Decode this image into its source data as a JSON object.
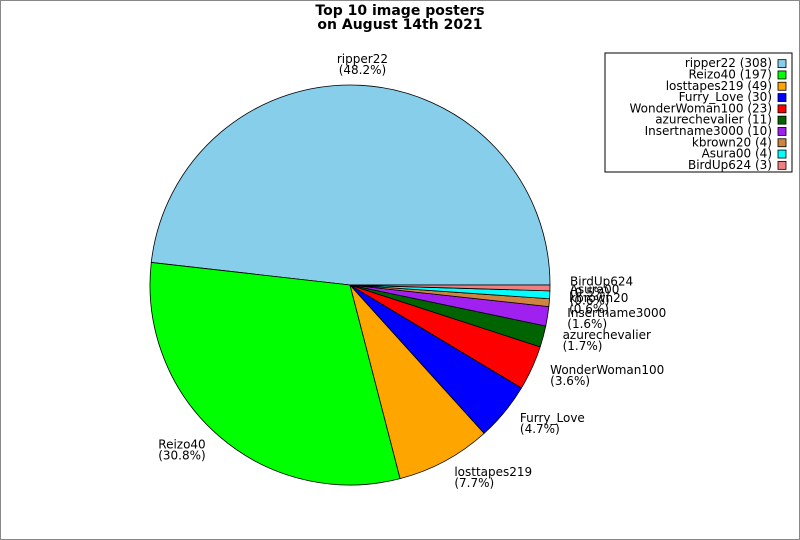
{
  "chart_data": {
    "type": "pie",
    "title": [
      "Top 10 image posters",
      "on August 14th 2021"
    ],
    "categories": [
      "ripper22",
      "Reizo40",
      "losttapes219",
      "Furry_Love",
      "WonderWoman100",
      "azurechevalier",
      "Insertname3000",
      "kbrown20",
      "Asura00",
      "BirdUp624"
    ],
    "values": [
      308,
      197,
      49,
      30,
      23,
      11,
      10,
      4,
      4,
      3
    ],
    "value_labels": [
      "(48.2%)",
      "(30.8%)",
      "(7.7%)",
      "(4.7%)",
      "(3.6%)",
      "(1.7%)",
      "(1.6%)",
      "(0.6%)",
      "(0.6%)",
      "(0.5%)"
    ],
    "legend_labels": [
      "ripper22 (308)",
      "Reizo40 (197)",
      "losttapes219 (49)",
      "Furry_Love (30)",
      "WonderWoman100 (23)",
      "azurechevalier (11)",
      "Insertname3000 (10)",
      "kbrown20 (4)",
      "Asura00 (4)",
      "BirdUp624 (3)"
    ],
    "colors": [
      "#87ceeb",
      "#00ff00",
      "#ffa500",
      "#0000ff",
      "#ff0000",
      "#006400",
      "#a020f0",
      "#cd853f",
      "#00ffff",
      "#f08080"
    ],
    "legend": "upper right"
  }
}
